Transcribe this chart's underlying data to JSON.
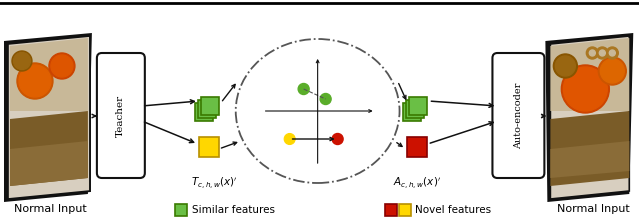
{
  "fig_width": 6.4,
  "fig_height": 2.21,
  "dpi": 100,
  "bg_color": "#ffffff",
  "left_label": "Normal Input",
  "right_label": "Normal Input",
  "teacher_label": "Teacher",
  "autoencoder_label": "Auto-encoder",
  "legend_similar": "Similar features",
  "legend_novel": "Novel features",
  "green_color": "#6abf45",
  "green_dark": "#3a7a00",
  "yellow_color": "#FFD700",
  "yellow_dark": "#b89000",
  "red_color": "#CC1100",
  "red_dark": "#880000",
  "box_facecolor": "#ffffff",
  "box_edgecolor": "#111111",
  "dashed_circle_color": "#555555",
  "green_dot_color": "#5aad2a",
  "arrow_color": "#111111"
}
